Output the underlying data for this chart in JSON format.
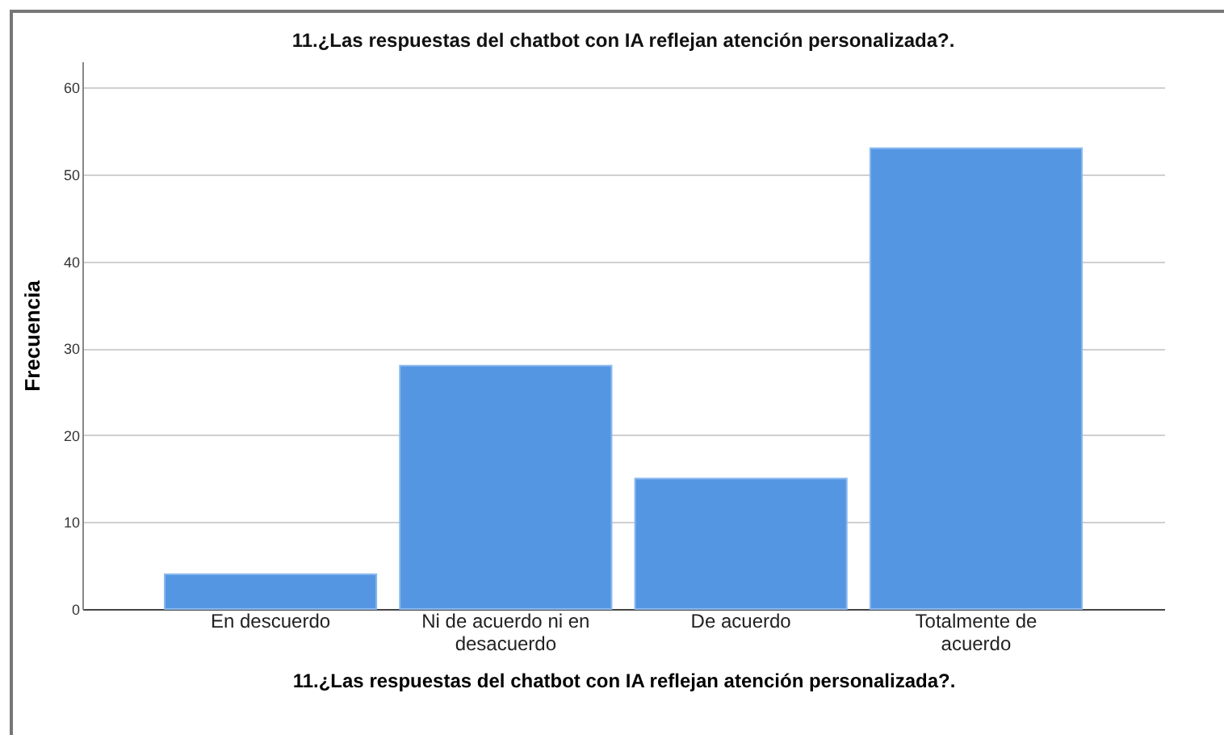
{
  "chart_data": {
    "type": "bar",
    "title": "11.¿Las respuestas del chatbot con IA  reflejan atención personalizada?.",
    "xlabel": "11.¿Las respuestas del chatbot con IA  reflejan atención personalizada?.",
    "ylabel": "Frecuencia",
    "categories": [
      "En descuerdo",
      "Ni de acuerdo ni en desacuerdo",
      "De acuerdo",
      "Totalmente de acuerdo"
    ],
    "values": [
      4,
      28,
      15,
      53
    ],
    "color": "#5596e3",
    "ylim": [
      0,
      63
    ],
    "yticks": [
      0,
      10,
      20,
      30,
      40,
      50,
      60
    ],
    "grid": "y"
  }
}
